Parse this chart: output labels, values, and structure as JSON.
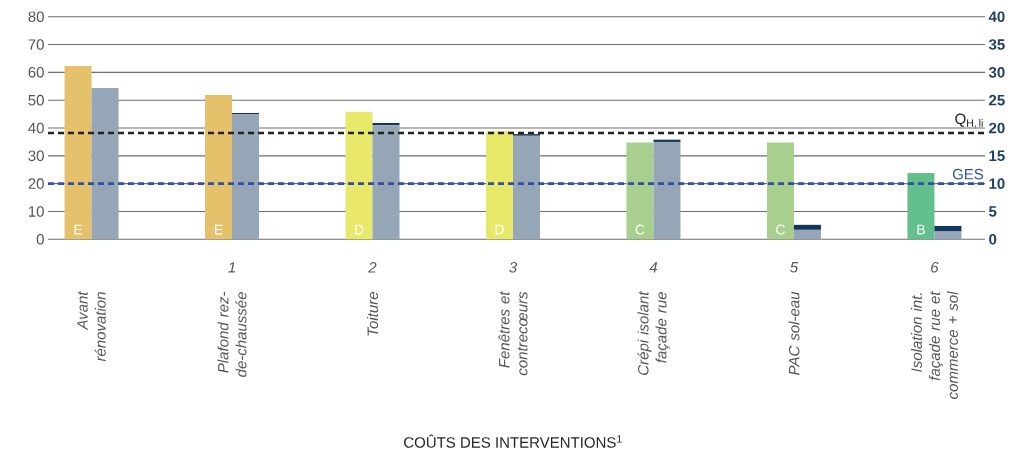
{
  "chart_data": {
    "type": "bar",
    "xlabel": "COÛTS DES INTERVENTIONS$^{1}$",
    "categories": [
      "Avant rénovation",
      "Plafond rez-de-chaussée",
      "Toiture",
      "Fenêtres et contrecœurs",
      "Crépi isolant façade rue",
      "PAC sol-eau",
      "Isolation int. façade rue et commerce + sol"
    ],
    "series": [
      {
        "axis": "y",
        "colors": [
          "#e6c16b",
          "#e6c16b",
          "#e8e86b",
          "#e8e86b",
          "#a8cf8e",
          "#a8cf8e",
          "#63c08c"
        ],
        "values": [
          62.3,
          51.9,
          45.8,
          38.8,
          34.8,
          34.8,
          23.8
        ]
      },
      {
        "axis": "y2",
        "color": "#95a7b6",
        "values": [
          27.2,
          22.5,
          20.5,
          18.6,
          17.5,
          1.7,
          1.4
        ]
      },
      {
        "axis": "y2",
        "color": "#12365a",
        "values": [
          0,
          0.2,
          0.4,
          0.3,
          0.4,
          0.9,
          1.0
        ]
      }
    ],
    "stacked": true,
    "ylim": [
      0,
      80
    ],
    "yticks": [
      0,
      10,
      20,
      30,
      40,
      50,
      60,
      70,
      80
    ],
    "y2lim": [
      0,
      40
    ],
    "y2ticks": [
      0,
      5,
      10,
      15,
      20,
      25,
      30,
      35,
      40
    ],
    "grid": "y",
    "ref_lines": [
      {
        "axis": "y",
        "value": 38.2,
        "label": "\\mathrm{Q}_{\\mathrm{H,\\,li}}",
        "color": "#222222",
        "line_style": "dashed"
      },
      {
        "axis": "y2",
        "value": 10,
        "label": "GES",
        "color": "#2e4ea8",
        "line_style": "dashed"
      }
    ],
    "annotations": [
      "1",
      "2",
      "3",
      "4",
      "5",
      "6",
      {
        "text": "E",
        "x": "Avant rénovation",
        "y": 3.5
      },
      {
        "text": "E",
        "x": "Plafond rez-de-chaussée",
        "y": 3.5
      },
      {
        "text": "D",
        "x": "Toiture",
        "y": 3.5
      },
      {
        "text": "D",
        "x": "Fenêtres et contrecœurs",
        "y": 3.5
      },
      {
        "text": "C",
        "x": "Crépi isolant façade rue",
        "y": 3.5
      },
      {
        "text": "C",
        "x": "PAC sol-eau",
        "y": 3.5
      },
      {
        "text": "B",
        "x": "Isolation int. façade rue et commerce + sol",
        "y": 3.5
      }
    ]
  }
}
